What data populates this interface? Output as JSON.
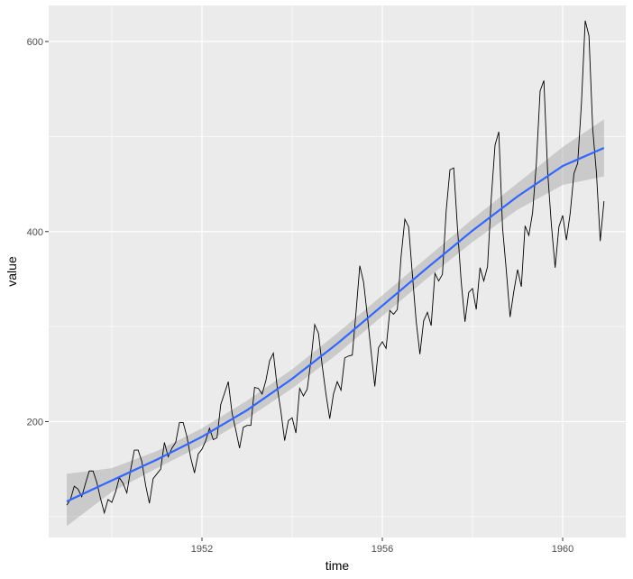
{
  "chart_data": {
    "type": "line",
    "xlabel": "time",
    "ylabel": "value",
    "xlim": [
      1948.6,
      1961.4
    ],
    "ylim": [
      78,
      638
    ],
    "x_ticks": [
      1952,
      1956,
      1960
    ],
    "x_tick_labels": [
      "1952",
      "1956",
      "1960"
    ],
    "y_ticks": [
      200,
      400,
      600
    ],
    "y_tick_labels": [
      "200",
      "400",
      "600"
    ],
    "grid": true,
    "legend": "none",
    "series": [
      {
        "type": "line",
        "color": "#000000",
        "x_start": 1949.0,
        "x_step": 0.0833333,
        "values": [
          112,
          118,
          132,
          129,
          121,
          135,
          148,
          148,
          136,
          119,
          104,
          118,
          115,
          126,
          141,
          135,
          125,
          149,
          170,
          170,
          158,
          133,
          114,
          140,
          145,
          150,
          178,
          163,
          172,
          178,
          199,
          199,
          184,
          162,
          146,
          166,
          171,
          180,
          193,
          181,
          183,
          218,
          230,
          242,
          209,
          191,
          172,
          194,
          196,
          196,
          236,
          235,
          229,
          243,
          264,
          272,
          237,
          211,
          180,
          201,
          204,
          188,
          235,
          227,
          234,
          264,
          302,
          293,
          259,
          229,
          203,
          229,
          242,
          233,
          267,
          269,
          270,
          315,
          364,
          347,
          312,
          274,
          237,
          278,
          284,
          277,
          317,
          313,
          318,
          374,
          413,
          405,
          355,
          306,
          271,
          306,
          315,
          301,
          356,
          348,
          355,
          422,
          465,
          467,
          404,
          347,
          305,
          336,
          340,
          318,
          362,
          348,
          363,
          435,
          491,
          505,
          404,
          359,
          310,
          337,
          360,
          342,
          406,
          396,
          420,
          472,
          548,
          559,
          463,
          407,
          362,
          405,
          417,
          391,
          419,
          461,
          472,
          535,
          622,
          606,
          508,
          461,
          390,
          432
        ]
      },
      {
        "type": "smooth",
        "color": "#3366FF",
        "ribbon_color": "#999999",
        "x": [
          1949.0,
          1950.0,
          1951.0,
          1952.0,
          1953.0,
          1954.0,
          1955.0,
          1956.0,
          1957.0,
          1958.0,
          1959.0,
          1960.0,
          1960.917
        ],
        "values": [
          116,
          138,
          160,
          184,
          212,
          245,
          282,
          322,
          362,
          401,
          437,
          469,
          488
        ],
        "lower": [
          90,
          126,
          151,
          175,
          203,
          235,
          271,
          311,
          351,
          389,
          423,
          449,
          458
        ],
        "upper": [
          145,
          151,
          169,
          193,
          222,
          255,
          293,
          333,
          373,
          413,
          451,
          489,
          518
        ]
      }
    ]
  }
}
